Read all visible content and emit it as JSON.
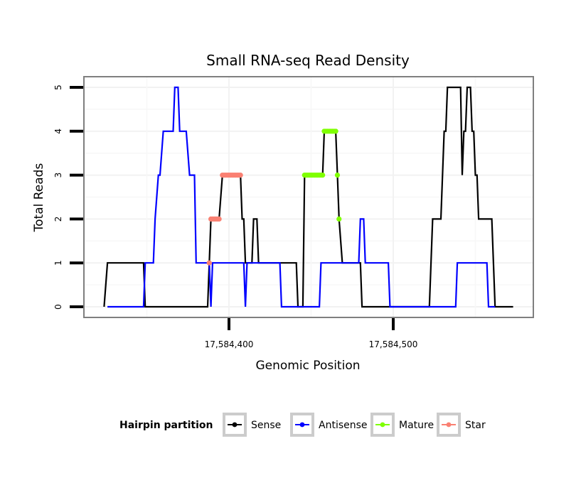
{
  "chart_data": {
    "type": "line",
    "title": "Small RNA-seq Read Density",
    "xlabel": "Genomic Position",
    "ylabel": "Total Reads",
    "xlim": [
      17584312,
      17584585
    ],
    "ylim": [
      -0.25,
      5.25
    ],
    "x_ticks": [
      17584400,
      17584500
    ],
    "x_tick_labels": [
      "17,584,400",
      "17,584,500"
    ],
    "y_ticks": [
      0,
      1,
      2,
      3,
      4,
      5
    ],
    "y_tick_labels": [
      "0",
      "1",
      "2",
      "3",
      "4",
      "5"
    ],
    "grid": true,
    "legend": {
      "title": "Hairpin partition",
      "placement": "bottom",
      "entries": [
        {
          "name": "Sense",
          "color": "#000000"
        },
        {
          "name": "Antisense",
          "color": "#0000FF"
        },
        {
          "name": "Mature",
          "color": "#7FFF00"
        },
        {
          "name": "Star",
          "color": "#FA8072"
        }
      ]
    },
    "series": [
      {
        "name": "Sense",
        "color": "#000000",
        "points": [
          [
            17584324,
            0
          ],
          [
            17584326,
            1
          ],
          [
            17584348,
            1
          ],
          [
            17584349,
            0
          ],
          [
            17584387,
            0
          ],
          [
            17584388,
            1
          ],
          [
            17584389,
            2
          ],
          [
            17584394,
            2
          ],
          [
            17584396,
            3
          ],
          [
            17584407,
            3
          ],
          [
            17584408,
            2
          ],
          [
            17584409,
            2
          ],
          [
            17584410,
            1
          ],
          [
            17584414,
            1
          ],
          [
            17584415,
            2
          ],
          [
            17584417,
            2
          ],
          [
            17584418,
            1
          ],
          [
            17584441,
            1
          ],
          [
            17584442,
            0
          ],
          [
            17584445,
            0
          ],
          [
            17584446,
            3
          ],
          [
            17584457,
            3
          ],
          [
            17584458,
            4
          ],
          [
            17584465,
            4
          ],
          [
            17584466,
            3
          ],
          [
            17584467,
            2
          ],
          [
            17584469,
            1
          ],
          [
            17584480,
            1
          ],
          [
            17584481,
            0
          ],
          [
            17584522,
            0
          ],
          [
            17584524,
            2
          ],
          [
            17584529,
            2
          ],
          [
            17584531,
            4
          ],
          [
            17584532,
            4
          ],
          [
            17584533,
            5
          ],
          [
            17584541,
            5
          ],
          [
            17584542,
            3
          ],
          [
            17584543,
            4
          ],
          [
            17584544,
            4
          ],
          [
            17584545,
            5
          ],
          [
            17584547,
            5
          ],
          [
            17584548,
            4
          ],
          [
            17584549,
            4
          ],
          [
            17584550,
            3
          ],
          [
            17584551,
            3
          ],
          [
            17584552,
            2
          ],
          [
            17584560,
            2
          ],
          [
            17584562,
            0
          ],
          [
            17584573,
            0
          ]
        ]
      },
      {
        "name": "Antisense",
        "color": "#0000FF",
        "points": [
          [
            17584326,
            0
          ],
          [
            17584348,
            0
          ],
          [
            17584349,
            1
          ],
          [
            17584354,
            1
          ],
          [
            17584355,
            2
          ],
          [
            17584357,
            3
          ],
          [
            17584358,
            3
          ],
          [
            17584360,
            4
          ],
          [
            17584366,
            4
          ],
          [
            17584367,
            5
          ],
          [
            17584369,
            5
          ],
          [
            17584370,
            4
          ],
          [
            17584374,
            4
          ],
          [
            17584376,
            3
          ],
          [
            17584379,
            3
          ],
          [
            17584380,
            1
          ],
          [
            17584388,
            1
          ],
          [
            17584389,
            0
          ],
          [
            17584390,
            1
          ],
          [
            17584409,
            1
          ],
          [
            17584410,
            0
          ],
          [
            17584411,
            1
          ],
          [
            17584431,
            1
          ],
          [
            17584432,
            0
          ],
          [
            17584455,
            0
          ],
          [
            17584456,
            1
          ],
          [
            17584479,
            1
          ],
          [
            17584480,
            2
          ],
          [
            17584482,
            2
          ],
          [
            17584483,
            1
          ],
          [
            17584497,
            1
          ],
          [
            17584498,
            0
          ],
          [
            17584538,
            0
          ],
          [
            17584539,
            1
          ],
          [
            17584557,
            1
          ],
          [
            17584558,
            0
          ],
          [
            17584562,
            0
          ]
        ]
      },
      {
        "name": "Mature",
        "color": "#7FFF00",
        "points": [
          [
            17584446,
            3
          ],
          [
            17584447,
            3
          ],
          [
            17584448,
            3
          ],
          [
            17584449,
            3
          ],
          [
            17584450,
            3
          ],
          [
            17584451,
            3
          ],
          [
            17584452,
            3
          ],
          [
            17584453,
            3
          ],
          [
            17584454,
            3
          ],
          [
            17584455,
            3
          ],
          [
            17584456,
            3
          ],
          [
            17584457,
            3
          ],
          [
            17584458,
            4
          ],
          [
            17584459,
            4
          ],
          [
            17584460,
            4
          ],
          [
            17584461,
            4
          ],
          [
            17584462,
            4
          ],
          [
            17584463,
            4
          ],
          [
            17584464,
            4
          ],
          [
            17584465,
            4
          ],
          [
            17584466,
            3
          ],
          [
            17584467,
            2
          ]
        ]
      },
      {
        "name": "Star",
        "color": "#FA8072",
        "points": [
          [
            17584388,
            1
          ],
          [
            17584389,
            2
          ],
          [
            17584390,
            2
          ],
          [
            17584391,
            2
          ],
          [
            17584392,
            2
          ],
          [
            17584393,
            2
          ],
          [
            17584394,
            2
          ],
          [
            17584396,
            3
          ],
          [
            17584397,
            3
          ],
          [
            17584398,
            3
          ],
          [
            17584399,
            3
          ],
          [
            17584400,
            3
          ],
          [
            17584401,
            3
          ],
          [
            17584402,
            3
          ],
          [
            17584403,
            3
          ],
          [
            17584404,
            3
          ],
          [
            17584405,
            3
          ],
          [
            17584406,
            3
          ],
          [
            17584407,
            3
          ]
        ]
      }
    ]
  }
}
